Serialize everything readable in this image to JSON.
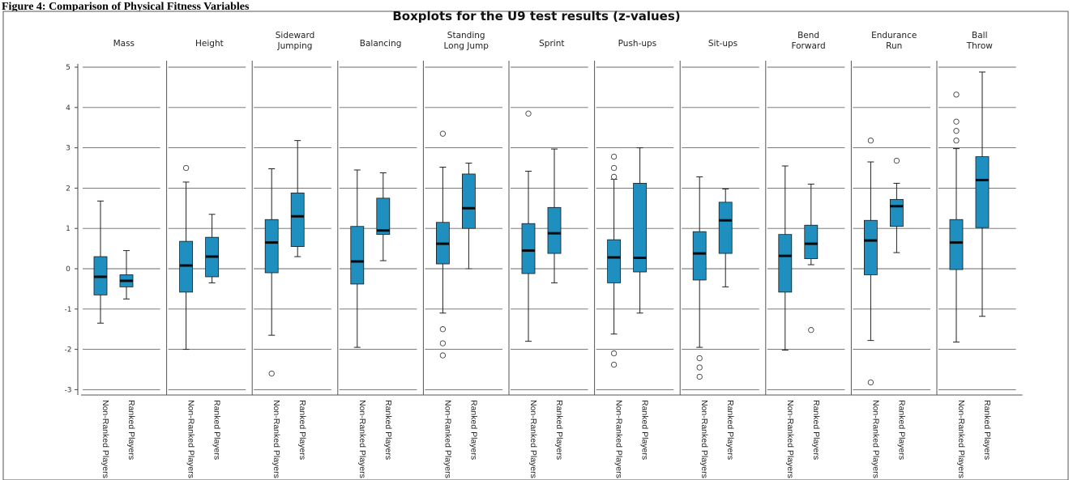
{
  "caption": "Figure 4: Comparison of Physical Fitness Variables",
  "chart_data": {
    "type": "boxplot",
    "title": "Boxplots for the U9 test results (z-values)",
    "ylim": [
      -3.1,
      5.1
    ],
    "yticks": [
      -3,
      -2,
      -1,
      0,
      1,
      2,
      3,
      4,
      5
    ],
    "ytick_labels": [
      "-3",
      "-2",
      "-1",
      "0",
      "1",
      "2",
      "3",
      "4",
      "5"
    ],
    "gridlines": true,
    "box_color": "#1f8fbf",
    "groups": [
      "Non-Ranked Players",
      "Ranked Players"
    ],
    "panels": [
      {
        "title": [
          "Mass"
        ],
        "boxes": [
          {
            "group": "Non-Ranked Players",
            "min": -1.35,
            "q1": -0.65,
            "median": -0.2,
            "q3": 0.3,
            "max": 1.68,
            "outliers": []
          },
          {
            "group": "Ranked Players",
            "min": -0.75,
            "q1": -0.45,
            "median": -0.3,
            "q3": -0.15,
            "max": 0.45,
            "outliers": []
          }
        ]
      },
      {
        "title": [
          "Height"
        ],
        "boxes": [
          {
            "group": "Non-Ranked Players",
            "min": -2.0,
            "q1": -0.58,
            "median": 0.08,
            "q3": 0.68,
            "max": 2.15,
            "outliers": [
              2.5
            ]
          },
          {
            "group": "Ranked Players",
            "min": -0.35,
            "q1": -0.2,
            "median": 0.3,
            "q3": 0.78,
            "max": 1.35,
            "outliers": []
          }
        ]
      },
      {
        "title": [
          "Sideward",
          "Jumping"
        ],
        "boxes": [
          {
            "group": "Non-Ranked Players",
            "min": -1.65,
            "q1": -0.1,
            "median": 0.65,
            "q3": 1.22,
            "max": 2.48,
            "outliers": [
              -2.6
            ]
          },
          {
            "group": "Ranked Players",
            "min": 0.3,
            "q1": 0.55,
            "median": 1.3,
            "q3": 1.88,
            "max": 3.18,
            "outliers": []
          }
        ]
      },
      {
        "title": [
          "Balancing"
        ],
        "boxes": [
          {
            "group": "Non-Ranked Players",
            "min": -1.95,
            "q1": -0.38,
            "median": 0.18,
            "q3": 1.05,
            "max": 2.45,
            "outliers": []
          },
          {
            "group": "Ranked Players",
            "min": 0.2,
            "q1": 0.85,
            "median": 0.95,
            "q3": 1.75,
            "max": 2.38,
            "outliers": []
          }
        ]
      },
      {
        "title": [
          "Standing",
          "Long Jump"
        ],
        "boxes": [
          {
            "group": "Non-Ranked Players",
            "min": -1.1,
            "q1": 0.12,
            "median": 0.62,
            "q3": 1.15,
            "max": 2.52,
            "outliers": [
              3.35,
              -1.5,
              -1.85,
              -2.15
            ]
          },
          {
            "group": "Ranked Players",
            "min": 0.0,
            "q1": 1.0,
            "median": 1.5,
            "q3": 2.35,
            "max": 2.62,
            "outliers": []
          }
        ]
      },
      {
        "title": [
          "Sprint"
        ],
        "boxes": [
          {
            "group": "Non-Ranked Players",
            "min": -1.8,
            "q1": -0.12,
            "median": 0.45,
            "q3": 1.12,
            "max": 2.42,
            "outliers": [
              3.85
            ]
          },
          {
            "group": "Ranked Players",
            "min": -0.35,
            "q1": 0.38,
            "median": 0.88,
            "q3": 1.52,
            "max": 2.97,
            "outliers": []
          }
        ]
      },
      {
        "title": [
          "Push-ups"
        ],
        "boxes": [
          {
            "group": "Non-Ranked Players",
            "min": -1.62,
            "q1": -0.35,
            "median": 0.28,
            "q3": 0.72,
            "max": 2.22,
            "outliers": [
              2.78,
              2.5,
              2.28,
              -2.1,
              -2.38
            ]
          },
          {
            "group": "Ranked Players",
            "min": -1.1,
            "q1": -0.08,
            "median": 0.27,
            "q3": 2.12,
            "max": 3.0,
            "outliers": []
          }
        ]
      },
      {
        "title": [
          "Sit-ups"
        ],
        "boxes": [
          {
            "group": "Non-Ranked Players",
            "min": -1.95,
            "q1": -0.28,
            "median": 0.38,
            "q3": 0.92,
            "max": 2.28,
            "outliers": [
              -2.22,
              -2.45,
              -2.68
            ]
          },
          {
            "group": "Ranked Players",
            "min": -0.45,
            "q1": 0.38,
            "median": 1.2,
            "q3": 1.65,
            "max": 1.98,
            "outliers": []
          }
        ]
      },
      {
        "title": [
          "Bend",
          "Forward"
        ],
        "boxes": [
          {
            "group": "Non-Ranked Players",
            "min": -2.02,
            "q1": -0.58,
            "median": 0.32,
            "q3": 0.85,
            "max": 2.55,
            "outliers": []
          },
          {
            "group": "Ranked Players",
            "min": 0.1,
            "q1": 0.25,
            "median": 0.62,
            "q3": 1.08,
            "max": 2.1,
            "outliers": [
              -1.52
            ]
          }
        ]
      },
      {
        "title": [
          "Endurance",
          "Run"
        ],
        "boxes": [
          {
            "group": "Non-Ranked Players",
            "min": -1.78,
            "q1": -0.15,
            "median": 0.7,
            "q3": 1.2,
            "max": 2.65,
            "outliers": [
              3.18,
              -2.82
            ]
          },
          {
            "group": "Ranked Players",
            "min": 0.4,
            "q1": 1.05,
            "median": 1.55,
            "q3": 1.72,
            "max": 2.12,
            "outliers": [
              2.68
            ]
          }
        ]
      },
      {
        "title": [
          "Ball",
          "Throw"
        ],
        "boxes": [
          {
            "group": "Non-Ranked Players",
            "min": -1.82,
            "q1": -0.02,
            "median": 0.65,
            "q3": 1.22,
            "max": 2.98,
            "outliers": [
              4.32,
              3.65,
              3.42,
              3.18
            ]
          },
          {
            "group": "Ranked Players",
            "min": -1.18,
            "q1": 1.02,
            "median": 2.2,
            "q3": 2.78,
            "max": 4.88,
            "outliers": []
          }
        ]
      }
    ]
  }
}
